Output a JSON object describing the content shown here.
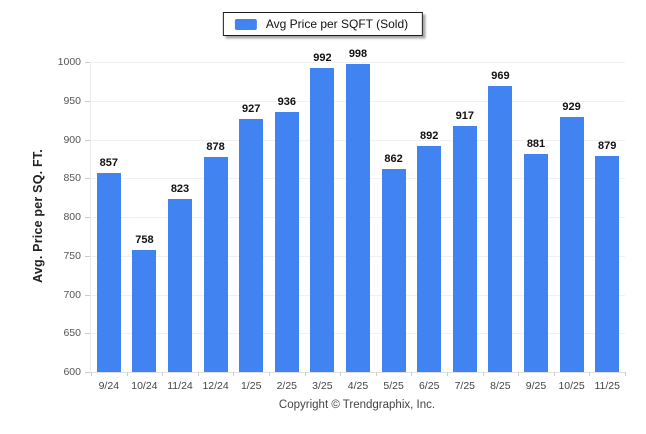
{
  "legend": {
    "label": "Avg Price per SQFT (Sold)",
    "swatch_color": "#4183f1"
  },
  "footer": {
    "copyright": "Copyright © Trendgraphix, Inc."
  },
  "colors": {
    "bar": "#4183f1",
    "gridline": "#f0f0f0",
    "axis": "#e0e0e0",
    "tick": "#cccccc",
    "y_tick_label": "#555555",
    "x_tick_label": "#444444",
    "value_label": "#111111"
  },
  "chart_data": {
    "type": "bar",
    "title": "",
    "xlabel": "",
    "ylabel": "Avg. Price per SQ. FT.",
    "categories": [
      "9/24",
      "10/24",
      "11/24",
      "12/24",
      "1/25",
      "2/25",
      "3/25",
      "4/25",
      "5/25",
      "6/25",
      "7/25",
      "8/25",
      "9/25",
      "10/25",
      "11/25"
    ],
    "series": [
      {
        "name": "Avg Price per SQFT (Sold)",
        "values": [
          857,
          758,
          823,
          878,
          927,
          936,
          992,
          998,
          862,
          892,
          917,
          969,
          881,
          929,
          879
        ]
      }
    ],
    "ylim": [
      600,
      1000
    ],
    "ytick_interval": 50,
    "yticks": [
      600,
      650,
      700,
      750,
      800,
      850,
      900,
      950,
      1000
    ],
    "grid": true,
    "legend_position": "top-center",
    "value_labels_shown": true
  }
}
